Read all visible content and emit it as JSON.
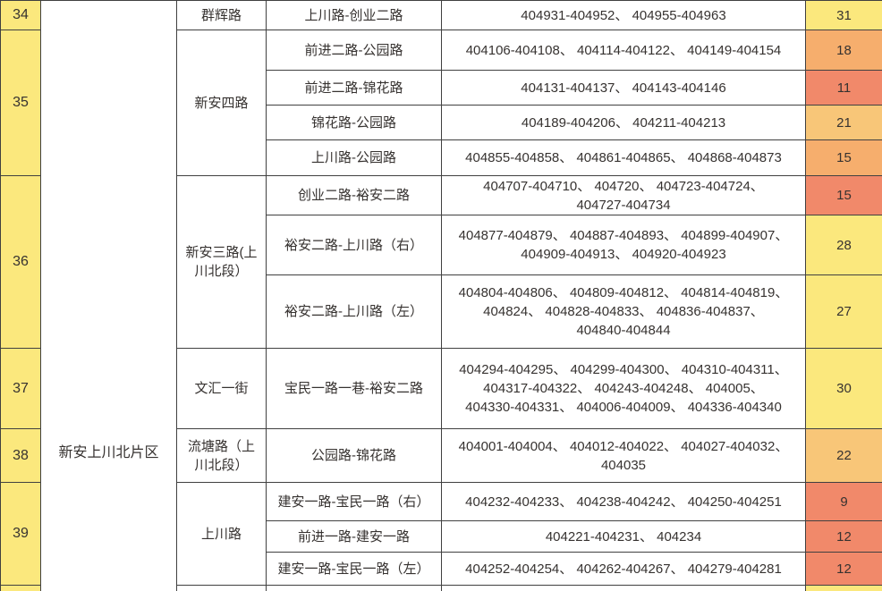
{
  "district": {
    "label": "新安上川北片区"
  },
  "colors": {
    "grid": "#404040",
    "text": "#363230",
    "id_col_bg": "#FBE87D",
    "levels": {
      "yellow": "#FBE87D",
      "light_orange": "#F8C678",
      "orange": "#F6AE6D",
      "salmon": "#F1896A"
    }
  },
  "table": {
    "rows": [
      {
        "id": "34",
        "id_span": 1,
        "road": "群辉路",
        "road_span": 1,
        "segment": "上川路-创业二路",
        "ranges": [
          "404931-404952",
          "404955-404963"
        ],
        "count": "31",
        "level": "yellow",
        "h": 33
      },
      {
        "id": "35",
        "id_span": 4,
        "road": "新安四路",
        "road_span": 4,
        "segment": "前进二路-公园路",
        "ranges": [
          "404106-404108",
          "404114-404122",
          "404149-404154"
        ],
        "count": "18",
        "level": "orange",
        "h": 45
      },
      {
        "segment": "前进二路-锦花路",
        "ranges": [
          "404131-404137",
          "404143-404146"
        ],
        "count": "11",
        "level": "salmon",
        "h": 39
      },
      {
        "segment": "锦花路-公园路",
        "ranges": [
          "404189-404206",
          "404211-404213"
        ],
        "count": "21",
        "level": "light_orange",
        "h": 39
      },
      {
        "segment": "上川路-公园路",
        "ranges": [
          "404855-404858",
          "404861-404865",
          "404868-404873"
        ],
        "count": "15",
        "level": "orange",
        "h": 40
      },
      {
        "id": "36",
        "id_span": 3,
        "road": "新安三路(上\n川北段）",
        "road_span": 3,
        "segment": "创业二路-裕安二路",
        "ranges": [
          "404707-404710",
          "404720",
          "404723-404724",
          "404727-404734"
        ],
        "count": "15",
        "level": "salmon",
        "h": 44
      },
      {
        "segment": "裕安二路-上川路（右）",
        "ranges": [
          "404877-404879",
          "404887-404893",
          "404899-404907",
          "404909-404913",
          "404920-404923"
        ],
        "count": "28",
        "level": "yellow",
        "h": 67
      },
      {
        "segment": "裕安二路-上川路（左）",
        "ranges": [
          "404804-404806",
          "404809-404812",
          "404814-404819",
          "404824",
          "404828-404833",
          "404836-404837",
          "404840-404844"
        ],
        "count": "27",
        "level": "yellow",
        "h": 82
      },
      {
        "id": "37",
        "id_span": 1,
        "road": "文汇一街",
        "road_span": 1,
        "segment": "宝民一路一巷-裕安二路",
        "ranges": [
          "404294-404295",
          "404299-404300",
          "404310-404311",
          "404317-404322",
          "404243-404248",
          "404005",
          "404330-404331",
          "404006-404009",
          "404336-404340"
        ],
        "count": "30",
        "level": "yellow",
        "h": 90
      },
      {
        "id": "38",
        "id_span": 1,
        "road": "流塘路（上\n川北段）",
        "road_span": 1,
        "segment": "公园路-锦花路",
        "ranges": [
          "404001-404004",
          "404012-404022",
          "404027-404032",
          "404035"
        ],
        "count": "22",
        "level": "light_orange",
        "h": 60
      },
      {
        "id": "39",
        "id_span": 3,
        "road": "上川路",
        "road_span": 3,
        "segment": "建安一路-宝民一路（右）",
        "ranges": [
          "404232-404233",
          "404238-404242",
          "404250-404251"
        ],
        "count": "9",
        "level": "salmon",
        "h": 43
      },
      {
        "segment": "前进一路-建安一路",
        "ranges": [
          "404221-404231",
          "404234"
        ],
        "count": "12",
        "level": "salmon",
        "h": 35
      },
      {
        "segment": "建安一路-宝民一路（左）",
        "ranges": [
          "404252-404254",
          "404262-404267",
          "404279-404281"
        ],
        "count": "12",
        "level": "salmon",
        "h": 37
      },
      {
        "partial": true,
        "level": "yellow",
        "h": 8
      }
    ]
  }
}
